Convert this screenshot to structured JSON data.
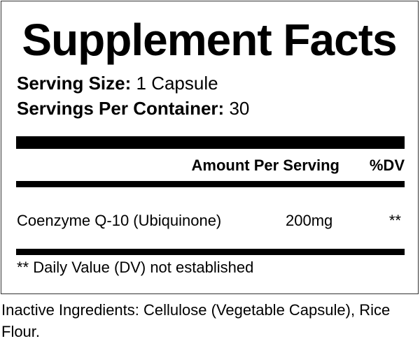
{
  "title": "Supplement Facts",
  "serving_size": {
    "label": "Serving Size:",
    "value": "1 Capsule"
  },
  "servings_per_container": {
    "label": "Servings Per Container:",
    "value": "30"
  },
  "header": {
    "amount": "Amount Per Serving",
    "dv": "%DV"
  },
  "ingredients": [
    {
      "name": "Coenzyme Q-10 (Ubiquinone)",
      "amount": "200mg",
      "dv": "**"
    }
  ],
  "footnote": "** Daily Value (DV) not established",
  "inactive": "Inactive Ingredients: Cellulose (Vegetable Capsule), Rice Flour."
}
